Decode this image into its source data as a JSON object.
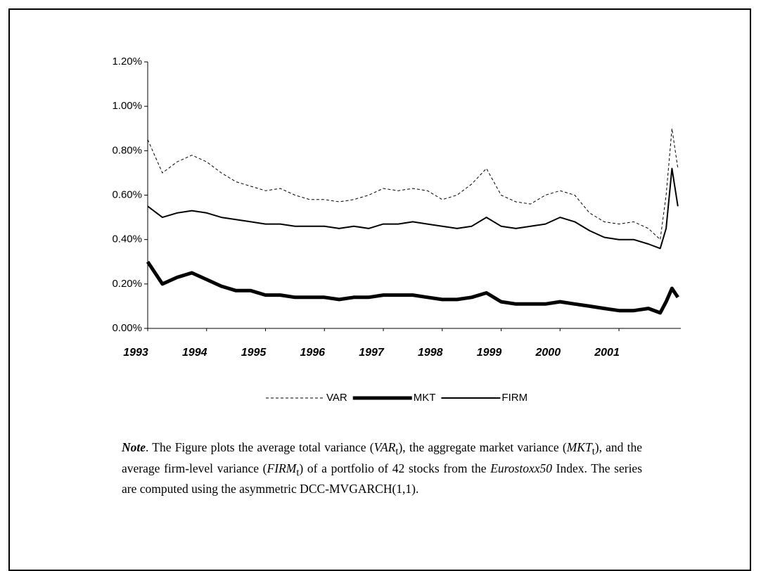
{
  "chart_data": {
    "type": "line",
    "x": [
      1993,
      1993.25,
      1993.5,
      1993.75,
      1994,
      1994.25,
      1994.5,
      1994.75,
      1995,
      1995.25,
      1995.5,
      1995.75,
      1996,
      1996.25,
      1996.5,
      1996.75,
      1997,
      1997.25,
      1997.5,
      1997.75,
      1998,
      1998.25,
      1998.5,
      1998.75,
      1999,
      1999.25,
      1999.5,
      1999.75,
      2000,
      2000.25,
      2000.5,
      2000.75,
      2001,
      2001.25,
      2001.5,
      2001.7,
      2001.8,
      2001.9,
      2002
    ],
    "series": [
      {
        "name": "VAR",
        "color": "#000000",
        "width": 1,
        "dash": true,
        "values": [
          0.85,
          0.7,
          0.75,
          0.78,
          0.75,
          0.7,
          0.66,
          0.64,
          0.62,
          0.63,
          0.6,
          0.58,
          0.58,
          0.57,
          0.58,
          0.6,
          0.63,
          0.62,
          0.63,
          0.62,
          0.58,
          0.6,
          0.65,
          0.72,
          0.6,
          0.57,
          0.56,
          0.6,
          0.62,
          0.6,
          0.52,
          0.48,
          0.47,
          0.48,
          0.45,
          0.4,
          0.6,
          0.9,
          0.72
        ]
      },
      {
        "name": "MKT",
        "color": "#000000",
        "width": 5,
        "dash": false,
        "values": [
          0.3,
          0.2,
          0.23,
          0.25,
          0.22,
          0.19,
          0.17,
          0.17,
          0.15,
          0.15,
          0.14,
          0.14,
          0.14,
          0.13,
          0.14,
          0.14,
          0.15,
          0.15,
          0.15,
          0.14,
          0.13,
          0.13,
          0.14,
          0.16,
          0.12,
          0.11,
          0.11,
          0.11,
          0.12,
          0.11,
          0.1,
          0.09,
          0.08,
          0.08,
          0.09,
          0.07,
          0.12,
          0.18,
          0.14
        ]
      },
      {
        "name": "FIRM",
        "color": "#000000",
        "width": 2,
        "dash": false,
        "values": [
          0.55,
          0.5,
          0.52,
          0.53,
          0.52,
          0.5,
          0.49,
          0.48,
          0.47,
          0.47,
          0.46,
          0.46,
          0.46,
          0.45,
          0.46,
          0.45,
          0.47,
          0.47,
          0.48,
          0.47,
          0.46,
          0.45,
          0.46,
          0.5,
          0.46,
          0.45,
          0.46,
          0.47,
          0.5,
          0.48,
          0.44,
          0.41,
          0.4,
          0.4,
          0.38,
          0.36,
          0.45,
          0.72,
          0.55
        ]
      }
    ],
    "xlim": [
      1993,
      2002.05
    ],
    "xticks": [
      1993,
      1994,
      1995,
      1996,
      1997,
      1998,
      1999,
      2000,
      2001
    ],
    "ylim": [
      0,
      1.2
    ],
    "yticks": [
      {
        "value": 0,
        "label": "0.00%"
      },
      {
        "value": 0.2,
        "label": "0.20%"
      },
      {
        "value": 0.4,
        "label": "0.40%"
      },
      {
        "value": 0.6,
        "label": "0.60%"
      },
      {
        "value": 0.8,
        "label": "0.80%"
      },
      {
        "value": 1.0,
        "label": "1.00%"
      },
      {
        "value": 1.2,
        "label": "1.20%"
      }
    ],
    "grid": false,
    "legend": "bottom"
  },
  "note": [
    {
      "text": "Note",
      "style": "bold-italic"
    },
    {
      "text": ". The Figure plots the average total variance ("
    },
    {
      "text": "VAR",
      "style": "italic"
    },
    {
      "text": "t",
      "style": "sub"
    },
    {
      "text": "), the aggregate market variance ("
    },
    {
      "text": "MKT",
      "style": "italic"
    },
    {
      "text": "t",
      "style": "sub"
    },
    {
      "text": "), and the average firm-level variance ("
    },
    {
      "text": "FIRM",
      "style": "italic"
    },
    {
      "text": "t",
      "style": "sub"
    },
    {
      "text": ") of a portfolio of 42 stocks from the "
    },
    {
      "text": "Eurostoxx50",
      "style": "italic"
    },
    {
      "text": " Index. The series are computed using the asymmetric DCC-MVGARCH(1,1)."
    }
  ]
}
